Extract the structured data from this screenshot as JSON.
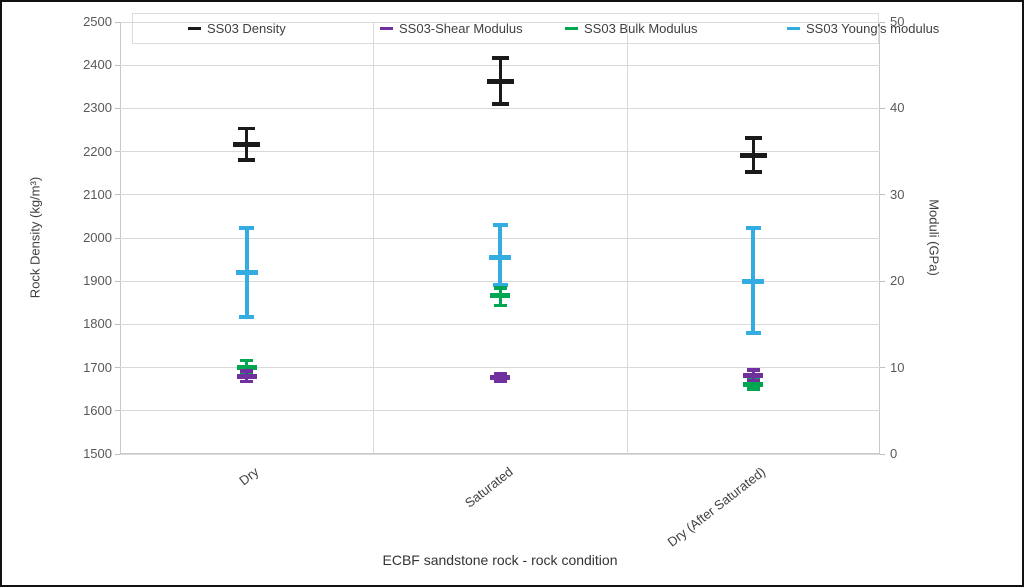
{
  "chart_data": {
    "type": "errorbar",
    "xlabel": "ECBF sandstone rock - rock condition",
    "ylabel_left": "Rock Density (kg/m³)",
    "ylabel_right": "Moduli (GPa)",
    "categories": [
      "Dry",
      "Saturated",
      "Dry (After Saturated)"
    ],
    "y_left_axis": {
      "min": 1500,
      "max": 2500,
      "step": 100,
      "ticks": [
        2500,
        2400,
        2300,
        2200,
        2100,
        2000,
        1900,
        1800,
        1700,
        1600,
        1500
      ]
    },
    "y_right_axis": {
      "min": 0,
      "max": 50,
      "step": 10,
      "ticks": [
        50,
        40,
        30,
        20,
        10,
        0
      ]
    },
    "grid": "horizontal",
    "legend_position": "top",
    "series": [
      {
        "name": "SS03 Density",
        "axis": "left",
        "color": "#1a1a1a",
        "points": [
          {
            "category": "Dry",
            "mean": 2216,
            "upper": 2253,
            "lower": 2180
          },
          {
            "category": "Saturated",
            "mean": 2362,
            "upper": 2417,
            "lower": 2310
          },
          {
            "category": "Dry (After Saturated)",
            "mean": 2192,
            "upper": 2232,
            "lower": 2153
          }
        ]
      },
      {
        "name": "SS03-Shear Modulus",
        "axis": "right",
        "color": "#7030a0",
        "points": [
          {
            "category": "Dry",
            "mean": 9.0,
            "upper": 9.6,
            "lower": 8.4
          },
          {
            "category": "Saturated",
            "mean": 8.9,
            "upper": 9.3,
            "lower": 8.4
          },
          {
            "category": "Dry (After Saturated)",
            "mean": 9.1,
            "upper": 9.7,
            "lower": 8.5
          }
        ]
      },
      {
        "name": "SS03 Bulk Modulus",
        "axis": "right",
        "color": "#00a650",
        "points": [
          {
            "category": "Dry",
            "mean": 10.0,
            "upper": 10.8,
            "lower": 9.3
          },
          {
            "category": "Saturated",
            "mean": 18.3,
            "upper": 19.2,
            "lower": 17.2
          },
          {
            "category": "Dry (After Saturated)",
            "mean": 8.1,
            "upper": 8.7,
            "lower": 7.5
          }
        ]
      },
      {
        "name": "SS03 Young's modulus",
        "axis": "right",
        "color": "#33ade1",
        "points": [
          {
            "category": "Dry",
            "mean": 21.0,
            "upper": 26.2,
            "lower": 15.9
          },
          {
            "category": "Saturated",
            "mean": 22.7,
            "upper": 26.5,
            "lower": 19.6
          },
          {
            "category": "Dry (After Saturated)",
            "mean": 20.0,
            "upper": 26.2,
            "lower": 14.0
          }
        ]
      }
    ]
  }
}
